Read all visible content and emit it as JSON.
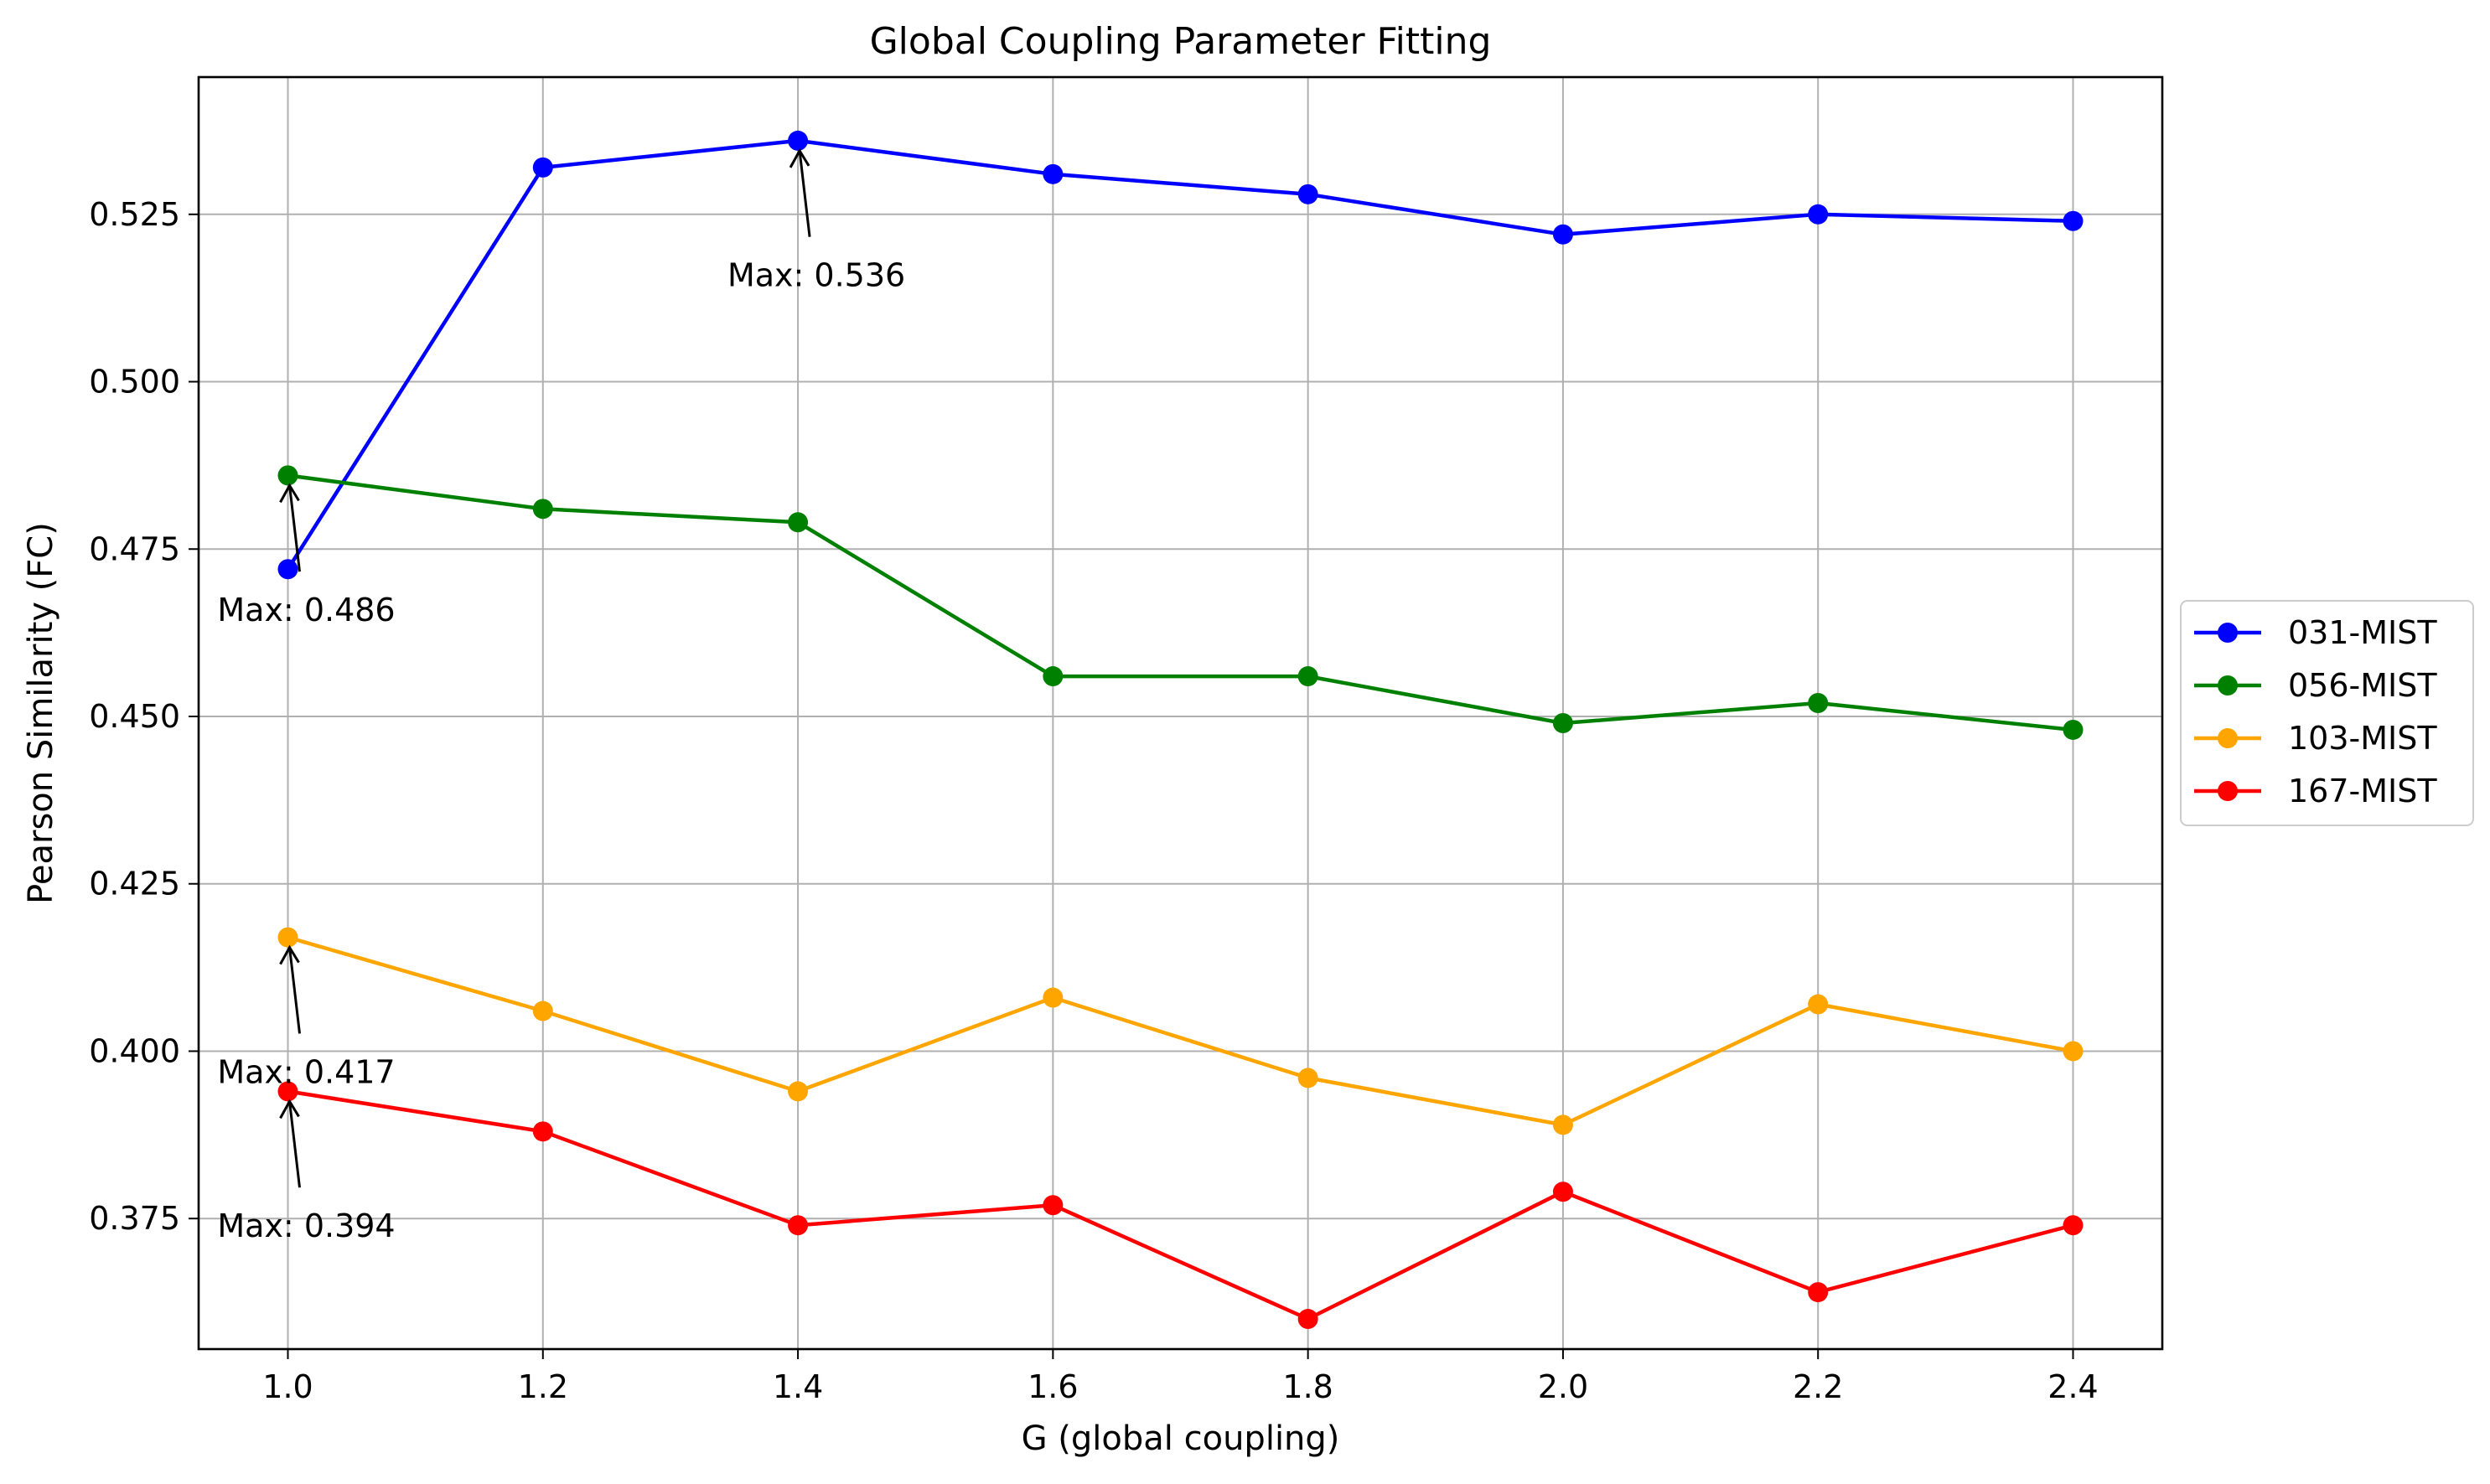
{
  "chart_data": {
    "type": "line",
    "title": "Global Coupling Parameter Fitting",
    "xlabel": "G (global coupling)",
    "ylabel": "Pearson Similarity (FC)",
    "x": [
      1.0,
      1.2,
      1.4,
      1.6,
      1.8,
      2.0,
      2.2,
      2.4
    ],
    "x_tick_labels": [
      "1.0",
      "1.2",
      "1.4",
      "1.6",
      "1.8",
      "2.0",
      "2.2",
      "2.4"
    ],
    "y_ticks": [
      0.375,
      0.4,
      0.425,
      0.45,
      0.475,
      0.5,
      0.525
    ],
    "y_tick_labels": [
      "0.375",
      "0.400",
      "0.425",
      "0.450",
      "0.475",
      "0.500",
      "0.525"
    ],
    "xlim": [
      0.93,
      2.47
    ],
    "ylim": [
      0.3555,
      0.5455
    ],
    "grid": true,
    "legend_position": "outside right, center",
    "series": [
      {
        "name": "031-MIST",
        "color": "#0000ff",
        "values": [
          0.472,
          0.532,
          0.536,
          0.531,
          0.528,
          0.522,
          0.525,
          0.524
        ]
      },
      {
        "name": "056-MIST",
        "color": "#008000",
        "values": [
          0.486,
          0.481,
          0.479,
          0.456,
          0.456,
          0.449,
          0.452,
          0.448
        ]
      },
      {
        "name": "103-MIST",
        "color": "#ffa500",
        "values": [
          0.417,
          0.406,
          0.394,
          0.408,
          0.396,
          0.389,
          0.407,
          0.4
        ]
      },
      {
        "name": "167-MIST",
        "color": "#ff0000",
        "values": [
          0.394,
          0.388,
          0.374,
          0.377,
          0.36,
          0.379,
          0.364,
          0.374
        ]
      }
    ],
    "annotations": [
      {
        "series": "031-MIST",
        "x": 1.4,
        "y": 0.536,
        "text": "Max: 0.536"
      },
      {
        "series": "056-MIST",
        "x": 1.0,
        "y": 0.486,
        "text": "Max: 0.486"
      },
      {
        "series": "103-MIST",
        "x": 1.0,
        "y": 0.417,
        "text": "Max: 0.417"
      },
      {
        "series": "167-MIST",
        "x": 1.0,
        "y": 0.394,
        "text": "Max: 0.394"
      }
    ]
  }
}
